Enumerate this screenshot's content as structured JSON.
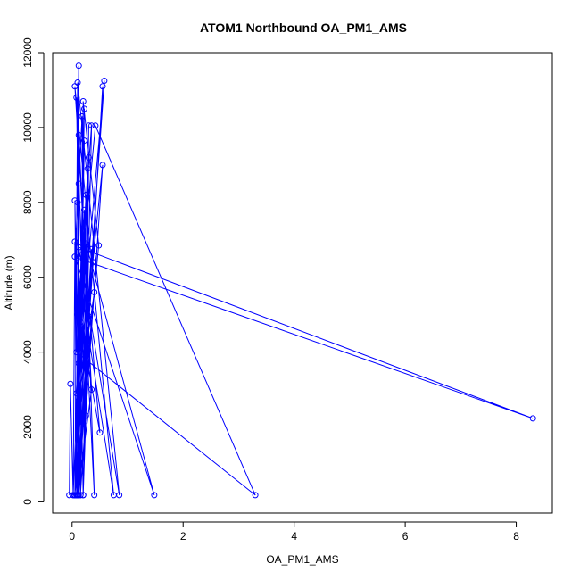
{
  "chart_data": {
    "type": "line",
    "title": "ATOM1 Northbound OA_PM1_AMS",
    "xlabel": "OA_PM1_AMS",
    "ylabel": "Altitude (m)",
    "xlim": [
      -0.35,
      8.65
    ],
    "ylim": [
      -300,
      12000
    ],
    "x_ticks": [
      0,
      2,
      4,
      6,
      8
    ],
    "y_ticks": [
      0,
      2000,
      4000,
      6000,
      8000,
      10000,
      12000
    ],
    "grid": false,
    "markers": "open-circle",
    "color": "#0000ff",
    "series": [
      {
        "points": [
          [
            -0.05,
            180
          ],
          [
            -0.03,
            3150
          ],
          [
            0.02,
            180
          ],
          [
            0.05,
            6950
          ],
          [
            0.08,
            180
          ],
          [
            0.12,
            11650
          ],
          [
            0.1,
            8000
          ],
          [
            0.2,
            180
          ],
          [
            0.35,
            10050
          ],
          [
            0.1,
            5000
          ],
          [
            0.42,
            10050
          ],
          [
            3.3,
            180
          ],
          [
            0.08,
            4000
          ],
          [
            0.05,
            8050
          ],
          [
            0.15,
            180
          ],
          [
            0.3,
            9200
          ],
          [
            0.25,
            2300
          ],
          [
            0.08,
            10800
          ],
          [
            0.12,
            6500
          ],
          [
            8.3,
            2230
          ],
          [
            0.12,
            6800
          ],
          [
            0.85,
            180
          ],
          [
            0.1,
            11200
          ],
          [
            0.05,
            180
          ],
          [
            0.22,
            9650
          ],
          [
            0.18,
            6600
          ],
          [
            0.05,
            180
          ],
          [
            0.58,
            11250
          ],
          [
            0.08,
            2900
          ],
          [
            0.25,
            6850
          ],
          [
            0.4,
            180
          ],
          [
            0.12,
            8500
          ],
          [
            0.1,
            180
          ],
          [
            0.22,
            10500
          ],
          [
            0.15,
            5800
          ],
          [
            0.75,
            180
          ],
          [
            0.05,
            11100
          ],
          [
            0.3,
            4950
          ],
          [
            0.12,
            180
          ],
          [
            0.55,
            11100
          ],
          [
            0.2,
            2100
          ],
          [
            0.18,
            10300
          ],
          [
            0.05,
            6550
          ],
          [
            1.48,
            180
          ],
          [
            0.25,
            6900
          ],
          [
            0.08,
            180
          ],
          [
            0.12,
            9800
          ],
          [
            0.35,
            3000
          ],
          [
            0.1,
            180
          ],
          [
            0.28,
            8900
          ],
          [
            0.15,
            4800
          ],
          [
            0.5,
            1850
          ],
          [
            0.22,
            6700
          ],
          [
            0.05,
            180
          ],
          [
            0.35,
            6750
          ],
          [
            0.2,
            180
          ],
          [
            0.3,
            10050
          ],
          [
            0.25,
            3900
          ],
          [
            0.1,
            180
          ],
          [
            0.4,
            5600
          ],
          [
            0.12,
            2700
          ],
          [
            0.55,
            9000
          ],
          [
            0.15,
            180
          ],
          [
            0.2,
            10700
          ],
          [
            0.48,
            6850
          ],
          [
            0.05,
            180
          ],
          [
            0.25,
            8200
          ],
          [
            0.12,
            3700
          ],
          [
            0.38,
            6400
          ],
          [
            0.08,
            180
          ],
          [
            0.22,
            7800
          ],
          [
            0.02,
            180
          ]
        ]
      }
    ]
  }
}
